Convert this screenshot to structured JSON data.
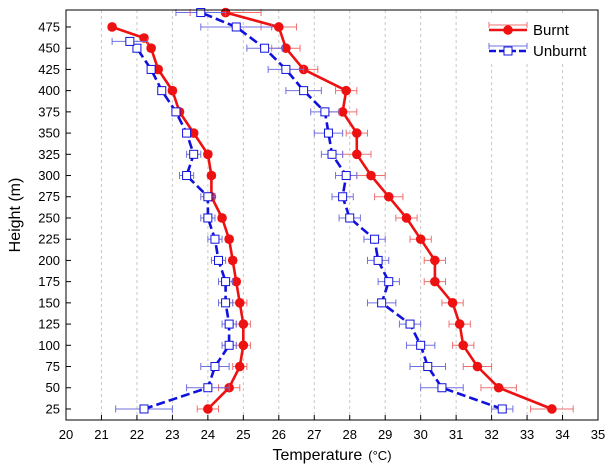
{
  "chart_data": {
    "type": "line",
    "xlabel": "Temperature",
    "xlabel_unit": "(°C)",
    "ylabel": "Height (m)",
    "xlim": [
      20,
      35
    ],
    "ylim": [
      12,
      495
    ],
    "xticks": [
      20,
      21,
      22,
      23,
      24,
      25,
      26,
      27,
      28,
      29,
      30,
      31,
      32,
      33,
      34,
      35
    ],
    "yticks": [
      25,
      50,
      75,
      100,
      125,
      150,
      175,
      200,
      225,
      250,
      275,
      300,
      325,
      350,
      375,
      400,
      425,
      450,
      475
    ],
    "grid": "vertical dashed",
    "legend_position": "top-right",
    "series": [
      {
        "name": "Burnt",
        "color": "#ee1111",
        "marker": "filled-circle",
        "profiles": [
          {
            "x": [
              24.0,
              24.6,
              24.9,
              25.0,
              25.0,
              24.9,
              24.8,
              24.7,
              24.6,
              24.4,
              24.1,
              24.1,
              24.0,
              23.6,
              23.2,
              23.0,
              22.6,
              22.4,
              22.2,
              21.3
            ],
            "y": [
              25,
              50,
              75,
              100,
              125,
              150,
              175,
              200,
              225,
              250,
              275,
              300,
              325,
              350,
              375,
              400,
              425,
              450,
              462,
              475
            ],
            "xerr": [
              0.3,
              0.3,
              0.2,
              0.2,
              0.2,
              0.2,
              0.1,
              0.1,
              0.1,
              0.1,
              0.1,
              0.1,
              0.1,
              0.1,
              0.1,
              0.1,
              0.1,
              0.1,
              0.1,
              0.1
            ]
          },
          {
            "x": [
              33.7,
              32.2,
              31.6,
              31.2,
              31.1,
              30.9,
              30.4,
              30.4,
              30.0,
              29.6,
              29.1,
              28.6,
              28.2,
              28.2,
              27.8,
              27.9,
              26.7,
              26.2,
              26.0,
              24.5
            ],
            "y": [
              25,
              50,
              75,
              100,
              125,
              150,
              175,
              200,
              225,
              250,
              275,
              300,
              325,
              350,
              375,
              400,
              425,
              450,
              475,
              492
            ],
            "xerr": [
              0.6,
              0.5,
              0.4,
              0.3,
              0.3,
              0.3,
              0.3,
              0.3,
              0.3,
              0.3,
              0.4,
              0.4,
              0.4,
              0.3,
              0.4,
              0.3,
              0.4,
              0.4,
              0.5,
              1.0
            ]
          }
        ]
      },
      {
        "name": "Unburnt",
        "color": "#1111dd",
        "marker": "open-square",
        "profiles": [
          {
            "x": [
              22.2,
              24.0,
              24.2,
              24.6,
              24.6,
              24.5,
              24.5,
              24.3,
              24.2,
              24.0,
              24.0,
              23.4,
              23.6,
              23.4,
              23.1,
              22.7,
              22.4,
              22.0,
              21.8
            ],
            "y": [
              25,
              50,
              75,
              100,
              125,
              150,
              175,
              200,
              225,
              250,
              275,
              300,
              325,
              350,
              375,
              400,
              425,
              450,
              458
            ],
            "xerr": [
              0.8,
              0.6,
              0.4,
              0.2,
              0.2,
              0.2,
              0.2,
              0.2,
              0.2,
              0.2,
              0.2,
              0.2,
              0.2,
              0.1,
              0.1,
              0.1,
              0.1,
              0.1,
              0.5
            ]
          },
          {
            "x": [
              32.3,
              30.6,
              30.2,
              30.0,
              29.7,
              28.9,
              29.1,
              28.8,
              28.7,
              28.0,
              27.8,
              27.9,
              27.5,
              27.4,
              27.3,
              26.7,
              26.2,
              25.6,
              24.8,
              23.8
            ],
            "y": [
              25,
              50,
              75,
              100,
              125,
              150,
              175,
              200,
              225,
              250,
              275,
              300,
              325,
              350,
              375,
              400,
              425,
              450,
              475,
              492
            ],
            "xerr": [
              0.3,
              0.6,
              0.5,
              0.4,
              0.3,
              0.4,
              0.3,
              0.3,
              0.3,
              0.3,
              0.3,
              0.3,
              0.3,
              0.4,
              0.4,
              0.5,
              0.5,
              0.5,
              1.0,
              0.7
            ]
          }
        ]
      }
    ]
  }
}
